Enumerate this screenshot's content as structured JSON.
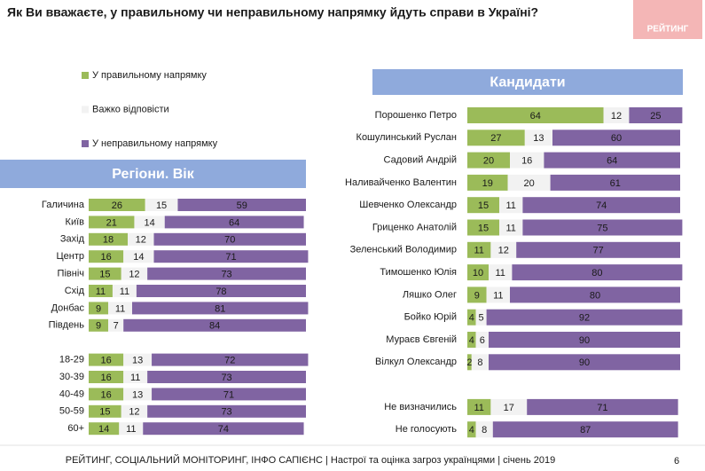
{
  "title": "Як Ви вважаєте, у правильному чи неправильному напрямку йдуть справи в Україні?",
  "logo": "РЕЙТИНГ",
  "footer": "РЕЙТИНГ, СОЦІАЛЬНИЙ МОНІТОРИНГ, ІНФО САПІЄНС | Настрої та оцінка загроз українцями | січень 2019",
  "page_number": "6",
  "chart_data": [
    {
      "type": "bar",
      "orientation": "horizontal",
      "stacked": true,
      "title": "Регіони. Вік",
      "categories": [
        "Галичина",
        "Київ",
        "Захід",
        "Центр",
        "Північ",
        "Схід",
        "Донбас",
        "Південь",
        null,
        "18-29",
        "30-39",
        "40-49",
        "50-59",
        "60+"
      ],
      "series": [
        {
          "name": "У правильному напрямку",
          "color": "#9bbb59",
          "values": [
            26,
            21,
            18,
            16,
            15,
            11,
            9,
            9,
            null,
            16,
            16,
            16,
            15,
            14
          ]
        },
        {
          "name": "Важко відповісти",
          "color": "#f2f2f2",
          "values": [
            15,
            14,
            12,
            14,
            12,
            11,
            11,
            7,
            null,
            13,
            11,
            13,
            12,
            11
          ]
        },
        {
          "name": "У неправильному напрямку",
          "color": "#8064a2",
          "values": [
            59,
            64,
            70,
            71,
            73,
            78,
            81,
            84,
            null,
            72,
            73,
            71,
            73,
            74
          ]
        }
      ]
    },
    {
      "type": "bar",
      "orientation": "horizontal",
      "stacked": true,
      "title": "Кандидати",
      "categories": [
        "Порошенко Петро",
        "Кошулинський Руслан",
        "Садовий Андрій",
        "Наливайченко Валентин",
        "Шевченко Олександр",
        "Гриценко Анатолій",
        "Зеленський Володимир",
        "Тимошенко Юлія",
        "Ляшко Олег",
        "Бойко Юрій",
        "Мураєв Євгеній",
        "Вілкул Олександр",
        null,
        "Не визначились",
        "Не голосують"
      ],
      "series": [
        {
          "color": "#9bbb59",
          "values": [
            64,
            27,
            20,
            19,
            15,
            15,
            11,
            10,
            9,
            4,
            4,
            2,
            null,
            11,
            4
          ]
        },
        {
          "color": "#f2f2f2",
          "values": [
            12,
            13,
            16,
            20,
            11,
            11,
            12,
            11,
            11,
            5,
            6,
            8,
            null,
            17,
            8
          ]
        },
        {
          "color": "#8064a2",
          "values": [
            25,
            60,
            64,
            61,
            74,
            75,
            77,
            80,
            80,
            92,
            90,
            90,
            null,
            71,
            87
          ]
        }
      ]
    }
  ]
}
